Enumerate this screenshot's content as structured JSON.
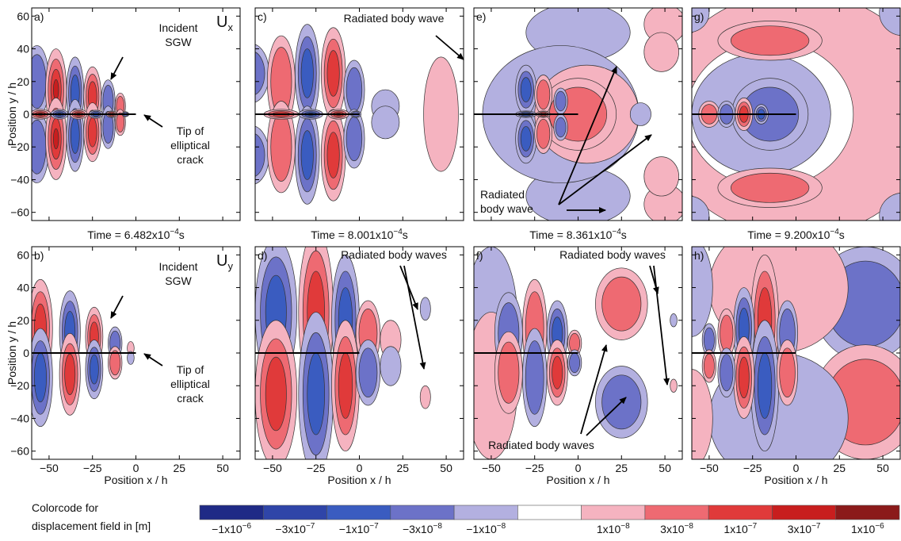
{
  "axis_labels": {
    "x": "Position x / h",
    "y": "Position y / h"
  },
  "xticks": [
    {
      "value": -50,
      "label": "−50"
    },
    {
      "value": -25,
      "label": "−25"
    },
    0,
    25,
    50
  ],
  "yticks": [
    60,
    40,
    20,
    0,
    {
      "value": -20,
      "label": "−20"
    },
    {
      "value": -40,
      "label": "−40"
    },
    {
      "value": -60,
      "label": "−60"
    }
  ],
  "panels": [
    {
      "letter": "a)",
      "component": "U",
      "component_sub": "x",
      "annotations": [
        [
          "Incident",
          "SGW"
        ],
        [
          "Tip of",
          "elliptical",
          "crack"
        ]
      ]
    },
    {
      "letter": "c)",
      "annotations": [
        [
          "Radiated body wave"
        ]
      ]
    },
    {
      "letter": "e)",
      "annotations": [
        [
          "Radiated",
          "body wave"
        ]
      ]
    },
    {
      "letter": "g)",
      "annotations": []
    },
    {
      "letter": "b)",
      "component": "U",
      "component_sub": "y",
      "annotations": [
        [
          "Incident",
          "SGW"
        ],
        [
          "Tip of",
          "elliptical",
          "crack"
        ]
      ]
    },
    {
      "letter": "d)",
      "annotations": [
        [
          "Radiated body waves"
        ]
      ]
    },
    {
      "letter": "f)",
      "annotations": [
        [
          "Radiated body waves"
        ],
        [
          "Radiated body waves"
        ]
      ]
    },
    {
      "letter": "h)",
      "annotations": []
    }
  ],
  "times": [
    {
      "base": "Time = 6.482x10",
      "exp": "−4",
      "unit": "s"
    },
    {
      "base": "Time = 8.001x10",
      "exp": "−4",
      "unit": "s"
    },
    {
      "base": "Time = 8.361x10",
      "exp": "−4",
      "unit": "s"
    },
    {
      "base": "Time = 9.200x10",
      "exp": "−4",
      "unit": "s"
    }
  ],
  "colorbar": {
    "title": [
      "Colorcode for",
      "displacement field in [m]"
    ],
    "colors": [
      "#1f2a86",
      "#2f45a8",
      "#3a5cc0",
      "#6c72c8",
      "#b3b0e0",
      "#ffffff",
      "#f5b3c0",
      "#ee6a72",
      "#e03a3a",
      "#c81e1e",
      "#8b1a1a"
    ],
    "labels": [
      {
        "base": "−1x10",
        "exp": "−6"
      },
      {
        "base": "−3x10",
        "exp": "−7"
      },
      {
        "base": "−1x10",
        "exp": "−7"
      },
      {
        "base": "−3x10",
        "exp": "−8"
      },
      {
        "base": "−1x10",
        "exp": "−8"
      },
      {
        "base": "1x10",
        "exp": "−8"
      },
      {
        "base": "3x10",
        "exp": "−8"
      },
      {
        "base": "1x10",
        "exp": "−7"
      },
      {
        "base": "3x10",
        "exp": "−7"
      },
      {
        "base": "1x10",
        "exp": "−6"
      }
    ]
  }
}
